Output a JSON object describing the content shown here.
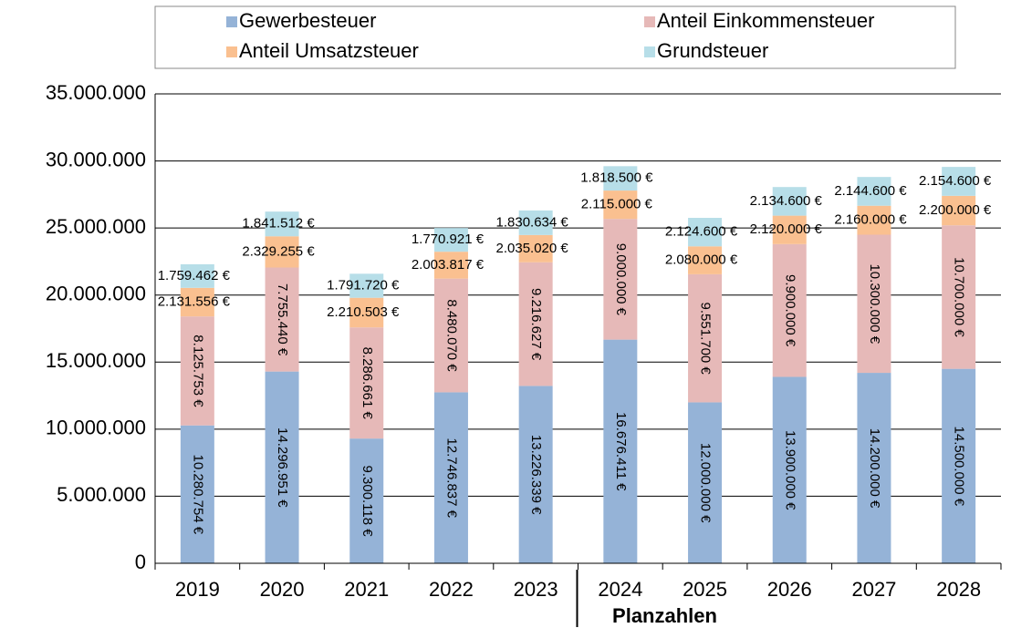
{
  "chart_data": {
    "type": "bar",
    "stacked": true,
    "categories": [
      "2019",
      "2020",
      "2021",
      "2022",
      "2023",
      "2024",
      "2025",
      "2026",
      "2027",
      "2028"
    ],
    "series": [
      {
        "name": "Gewerbesteuer",
        "color": "#95b3d7",
        "values": [
          10280754,
          14296951,
          9300118,
          12746837,
          13226339,
          16676411,
          12000000,
          13900000,
          14200000,
          14500000
        ],
        "value_labels": [
          "10.280.754 €",
          "14.296.951 €",
          "9.300.118 €",
          "12.746.837 €",
          "13.226.339 €",
          "16.676.411 €",
          "12.000.000 €",
          "13.900.000 €",
          "14.200.000 €",
          "14.500.000 €"
        ]
      },
      {
        "name": "Anteil Einkommensteuer",
        "color": "#e6b9b8",
        "values": [
          8125753,
          7755440,
          8286661,
          8480070,
          9216627,
          9000000,
          9551700,
          9900000,
          10300000,
          10700000
        ],
        "value_labels": [
          "8.125.753 €",
          "7.755.440 €",
          "8.286.661 €",
          "8.480.070 €",
          "9.216.627 €",
          "9.000.000 €",
          "9.551.700 €",
          "9.900.000 €",
          "10.300.000 €",
          "10.700.000 €"
        ]
      },
      {
        "name": "Anteil Umsatzsteuer",
        "color": "#fac090",
        "values": [
          2131556,
          2329255,
          2210503,
          2003817,
          2035020,
          2115000,
          2080000,
          2120000,
          2160000,
          2200000
        ],
        "value_labels": [
          "2.131.556 €",
          "2.329.255 €",
          "2.210.503 €",
          "2.003.817 €",
          "2.035.020 €",
          "2.115.000 €",
          "2.080.000 €",
          "2.120.000 €",
          "2.160.000 €",
          "2.200.000 €"
        ]
      },
      {
        "name": "Grundsteuer",
        "color": "#b7dee8",
        "values": [
          1759462,
          1841512,
          1791720,
          1770921,
          1830634,
          1818500,
          2124600,
          2134600,
          2144600,
          2154600
        ],
        "value_labels": [
          "1.759.462 €",
          "1.841.512 €",
          "1.791.720 €",
          "1.770.921 €",
          "1.830.634 €",
          "1.818.500 €",
          "2.124.600 €",
          "2.134.600 €",
          "2.144.600 €",
          "2.154.600 €"
        ]
      }
    ],
    "ylim": [
      0,
      35000000
    ],
    "yticks": [
      0,
      {
        "value": 5000000,
        "label": "5.000.000"
      },
      {
        "value": 10000000,
        "label": "10.000.000"
      },
      {
        "value": 15000000,
        "label": "15.000.000"
      },
      {
        "value": 20000000,
        "label": "20.000.000"
      },
      {
        "value": 25000000,
        "label": "25.000.000"
      },
      {
        "value": 30000000,
        "label": "30.000.000"
      },
      {
        "value": 35000000,
        "label": "35.000.000"
      }
    ],
    "grid": true,
    "legend": "top",
    "annotations": [
      "Planzahlen"
    ]
  }
}
